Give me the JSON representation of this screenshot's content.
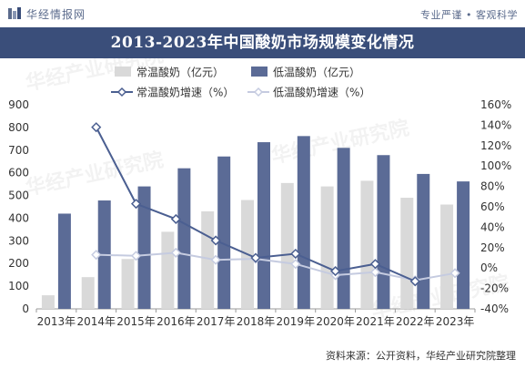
{
  "header": {
    "brand": "华经情报网",
    "slogan": "专业严谨 • 客观科学",
    "title": "2013-2023年中国酸奶市场规模变化情况"
  },
  "watermark": "华经产业研究院",
  "source": "资料来源：公开资料，华经产业研究院整理",
  "colors": {
    "title_bg": "#3a4e7a",
    "bar_ambient": "#d9d9d9",
    "bar_low_temp": "#5b6b96",
    "line_ambient": "#4b5f91",
    "line_low_temp": "#c5cbe0"
  },
  "chart_data": {
    "type": "bar",
    "categories": [
      "2013年",
      "2014年",
      "2015年",
      "2016年",
      "2017年",
      "2018年",
      "2019年",
      "2020年",
      "2021年",
      "2022年",
      "2023年"
    ],
    "series": [
      {
        "name": "常温酸奶（亿元）",
        "kind": "bar",
        "axis": "left",
        "values": [
          60,
          140,
          220,
          340,
          430,
          480,
          555,
          540,
          565,
          490,
          460
        ]
      },
      {
        "name": "低温酸奶（亿元）",
        "kind": "bar",
        "axis": "left",
        "values": [
          420,
          478,
          540,
          620,
          672,
          735,
          762,
          710,
          678,
          595,
          562
        ]
      },
      {
        "name": "常温酸奶增速（%）",
        "kind": "line",
        "axis": "right",
        "values": [
          null,
          138,
          63,
          48,
          27,
          10,
          14,
          -3,
          4,
          -13,
          null
        ]
      },
      {
        "name": "低温酸奶增速（%）",
        "kind": "line",
        "axis": "right",
        "values": [
          null,
          13,
          12,
          15,
          8,
          9,
          4,
          -7,
          -4,
          -12,
          -5
        ]
      }
    ],
    "y_left": {
      "min": 0,
      "max": 900,
      "ticks": [
        0,
        100,
        200,
        300,
        400,
        500,
        600,
        700,
        800,
        900
      ]
    },
    "y_right": {
      "min": -40,
      "max": 160,
      "ticks": [
        "-40%",
        "-20%",
        "0%",
        "20%",
        "40%",
        "60%",
        "80%",
        "100%",
        "120%",
        "140%",
        "160%"
      ]
    },
    "legend_position": "top",
    "grid": false
  }
}
